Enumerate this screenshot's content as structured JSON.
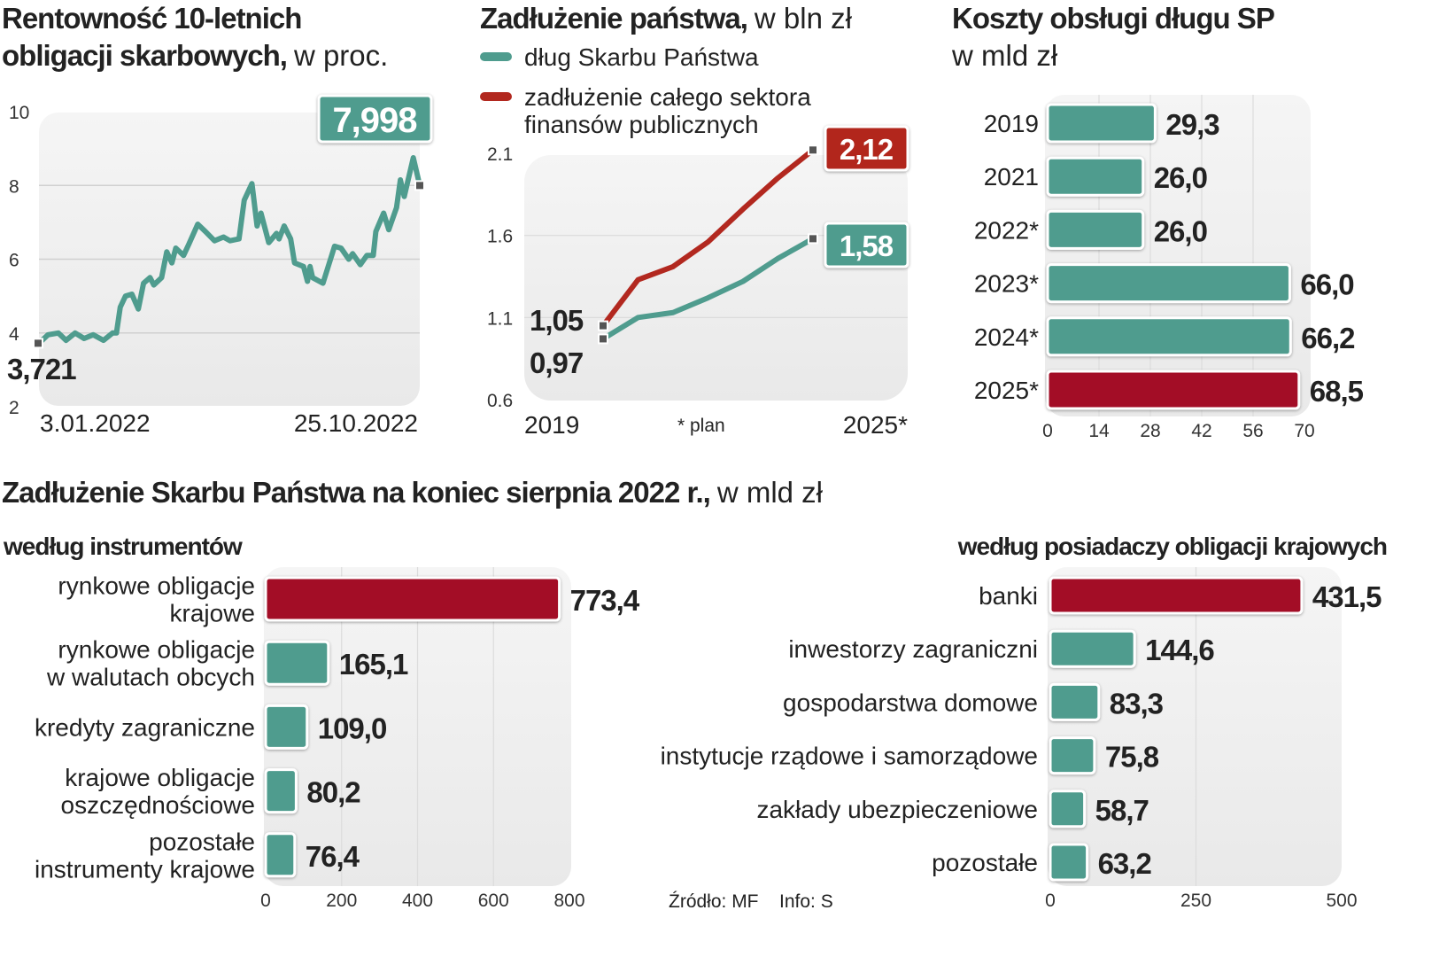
{
  "colors": {
    "teal": "#4f9c8e",
    "line_red": "#b2281f",
    "bar_red": "#a30e28",
    "panel": "#efefef"
  },
  "footer": {
    "source": "Źródło: MF",
    "info": "Info: S"
  },
  "chart_data": [
    {
      "type": "line",
      "title": "Rentowność 10-letnich obligacji skarbowych,",
      "title_line1": "Rentowność 10-letnich",
      "title_line2": "obligacji skarbowych,",
      "subtitle": "w proc.",
      "ylim": [
        2,
        10
      ],
      "yticks": [
        "10",
        "8",
        "6",
        "4",
        "2"
      ],
      "xtick_labels": [
        "3.01.2022",
        "25.10.2022"
      ],
      "grid": true,
      "start_label": "3,721",
      "end_label": "7,998",
      "series": [
        {
          "color": "#4f9c8e",
          "points": [
            [
              "2022-01-03",
              3.72
            ],
            [
              "2022-01-10",
              3.95
            ],
            [
              "2022-01-18",
              4.0
            ],
            [
              "2022-01-24",
              3.8
            ],
            [
              "2022-01-31",
              4.0
            ],
            [
              "2022-02-07",
              3.85
            ],
            [
              "2022-02-14",
              3.95
            ],
            [
              "2022-02-22",
              3.8
            ],
            [
              "2022-03-01",
              4.0
            ],
            [
              "2022-03-04",
              4.0
            ],
            [
              "2022-03-07",
              4.7
            ],
            [
              "2022-03-11",
              5.0
            ],
            [
              "2022-03-16",
              5.05
            ],
            [
              "2022-03-21",
              4.65
            ],
            [
              "2022-03-25",
              5.35
            ],
            [
              "2022-03-30",
              5.5
            ],
            [
              "2022-04-02",
              5.3
            ],
            [
              "2022-04-08",
              5.5
            ],
            [
              "2022-04-12",
              6.2
            ],
            [
              "2022-04-16",
              5.9
            ],
            [
              "2022-04-19",
              6.3
            ],
            [
              "2022-04-25",
              6.1
            ],
            [
              "2022-04-29",
              6.4
            ],
            [
              "2022-05-06",
              6.95
            ],
            [
              "2022-05-12",
              6.75
            ],
            [
              "2022-05-19",
              6.5
            ],
            [
              "2022-05-26",
              6.6
            ],
            [
              "2022-05-31",
              6.5
            ],
            [
              "2022-06-07",
              6.55
            ],
            [
              "2022-06-11",
              7.6
            ],
            [
              "2022-06-17",
              8.05
            ],
            [
              "2022-06-21",
              6.9
            ],
            [
              "2022-06-24",
              7.25
            ],
            [
              "2022-06-30",
              6.45
            ],
            [
              "2022-07-06",
              6.7
            ],
            [
              "2022-07-08",
              6.55
            ],
            [
              "2022-07-12",
              6.9
            ],
            [
              "2022-07-17",
              6.55
            ],
            [
              "2022-07-20",
              5.9
            ],
            [
              "2022-07-27",
              5.8
            ],
            [
              "2022-07-30",
              5.4
            ],
            [
              "2022-08-01",
              5.8
            ],
            [
              "2022-08-03",
              5.5
            ],
            [
              "2022-08-11",
              5.35
            ],
            [
              "2022-08-20",
              6.35
            ],
            [
              "2022-08-25",
              6.3
            ],
            [
              "2022-08-31",
              6.0
            ],
            [
              "2022-09-03",
              6.15
            ],
            [
              "2022-09-09",
              5.85
            ],
            [
              "2022-09-14",
              6.1
            ],
            [
              "2022-09-19",
              6.1
            ],
            [
              "2022-09-21",
              6.75
            ],
            [
              "2022-09-27",
              7.25
            ],
            [
              "2022-10-01",
              6.8
            ],
            [
              "2022-10-07",
              7.4
            ],
            [
              "2022-10-10",
              8.15
            ],
            [
              "2022-10-13",
              7.7
            ],
            [
              "2022-10-20",
              8.75
            ],
            [
              "2022-10-25",
              8.0
            ]
          ]
        }
      ]
    },
    {
      "type": "line",
      "title": "Zadłużenie państwa,",
      "subtitle": "w bln zł",
      "ylim": [
        0.6,
        2.1
      ],
      "yticks": [
        "2.1",
        "1.6",
        "1.1",
        "0.6"
      ],
      "x": [
        2019,
        2020,
        2021,
        2022,
        2023,
        2024,
        2025
      ],
      "xtick_labels": [
        "2019",
        "2025*"
      ],
      "note": "* plan",
      "grid": true,
      "legend_position": "top",
      "series": [
        {
          "name": "dług Skarbu Państwa",
          "color": "#4f9c8e",
          "values": [
            0.97,
            1.1,
            1.13,
            1.22,
            1.32,
            1.46,
            1.58
          ],
          "start_label": "0,97",
          "end_label": "1,58"
        },
        {
          "name": "zadłużenie całego sektora finansów publicznych",
          "name_line1": "zadłużenie całego sektora",
          "name_line2": "finansów publicznych",
          "color": "#b2281f",
          "values": [
            1.05,
            1.33,
            1.41,
            1.56,
            1.76,
            1.95,
            2.12
          ],
          "start_label": "1,05",
          "end_label": "2,12"
        }
      ]
    },
    {
      "type": "bar",
      "orientation": "horizontal",
      "title": "Koszty obsługi długu SP",
      "subtitle": "w mld zł",
      "categories": [
        "2019",
        "2021",
        "2022*",
        "2023*",
        "2024*",
        "2025*"
      ],
      "values": [
        29.3,
        26.0,
        26.0,
        66.0,
        66.2,
        68.5
      ],
      "value_labels": [
        "29,3",
        "26,0",
        "26,0",
        "66,0",
        "66,2",
        "68,5"
      ],
      "highlight": [
        false,
        false,
        false,
        false,
        false,
        true
      ],
      "xlim": [
        0,
        70
      ],
      "xticks": [
        "0",
        "14",
        "28",
        "42",
        "56",
        "70"
      ],
      "grid": true
    },
    {
      "type": "bar",
      "orientation": "horizontal",
      "group_title": "Zadłużenie Skarbu Państwa na koniec sierpnia 2022 r.,",
      "group_subtitle": "w mld zł",
      "title": "według instrumentów",
      "categories": [
        [
          "rynkowe obligacje",
          "krajowe"
        ],
        [
          "rynkowe obligacje",
          "w walutach obcych"
        ],
        [
          "kredyty zagraniczne"
        ],
        [
          "krajowe obligacje",
          "oszczędnościowe"
        ],
        [
          "pozostałe",
          "instrumenty krajowe"
        ]
      ],
      "values": [
        773.4,
        165.1,
        109.0,
        80.2,
        76.4
      ],
      "value_labels": [
        "773,4",
        "165,1",
        "109,0",
        "80,2",
        "76,4"
      ],
      "highlight": [
        true,
        false,
        false,
        false,
        false
      ],
      "xlim": [
        0,
        800
      ],
      "xticks": [
        "0",
        "200",
        "400",
        "600",
        "800"
      ],
      "grid": true
    },
    {
      "type": "bar",
      "orientation": "horizontal",
      "title": "według posiadaczy obligacji krajowych",
      "categories": [
        [
          "banki"
        ],
        [
          "inwestorzy zagraniczni"
        ],
        [
          "gospodarstwa domowe"
        ],
        [
          "instytucje rządowe i samorządowe"
        ],
        [
          "zakłady ubezpieczeniowe"
        ],
        [
          "pozostałe"
        ]
      ],
      "values": [
        431.5,
        144.6,
        83.3,
        75.8,
        58.7,
        63.2
      ],
      "value_labels": [
        "431,5",
        "144,6",
        "83,3",
        "75,8",
        "58,7",
        "63,2"
      ],
      "highlight": [
        true,
        false,
        false,
        false,
        false,
        false
      ],
      "xlim": [
        0,
        500
      ],
      "xticks": [
        "0",
        "250",
        "500"
      ],
      "grid": true
    }
  ]
}
